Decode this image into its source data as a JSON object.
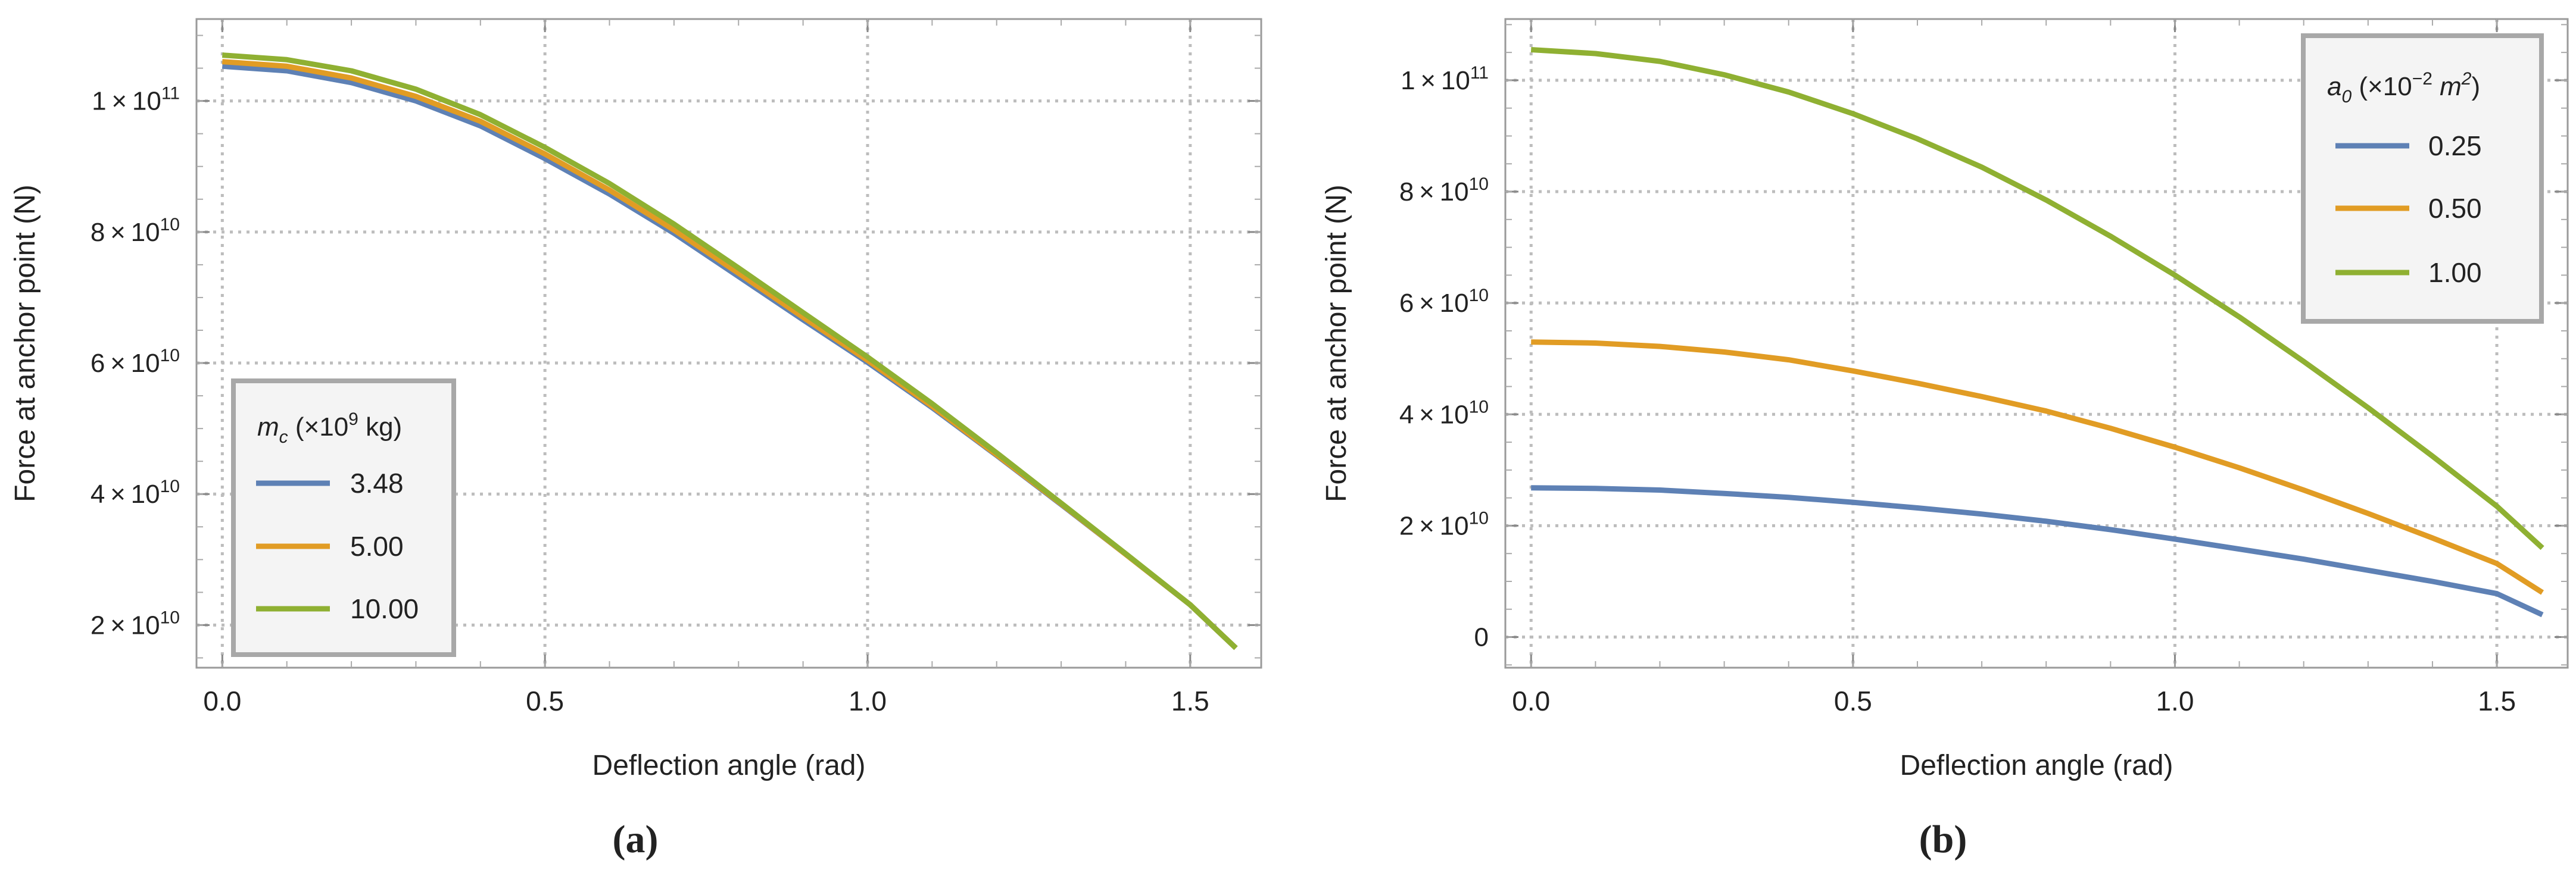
{
  "chart_data": [
    {
      "type": "line",
      "panel_label": "(a)",
      "xlabel": "Deflection angle (rad)",
      "ylabel": "Force at anchor point (N)",
      "xlim": [
        -0.04,
        1.61
      ],
      "ylim": [
        13500000000.0,
        112500000000.0
      ],
      "x_ticks": [
        {
          "value": 0.0,
          "label": "0.0"
        },
        {
          "value": 0.5,
          "label": "0.5"
        },
        {
          "value": 1.0,
          "label": "1.0"
        },
        {
          "value": 1.5,
          "label": "1.5"
        }
      ],
      "y_ticks": [
        {
          "value": 20000000000.0,
          "mant": "2",
          "exp": "10"
        },
        {
          "value": 40000000000.0,
          "mant": "4",
          "exp": "10"
        },
        {
          "value": 60000000000.0,
          "mant": "6",
          "exp": "10"
        },
        {
          "value": 80000000000.0,
          "mant": "8",
          "exp": "10"
        },
        {
          "value": 100000000000.0,
          "mant": "1",
          "exp": "11"
        }
      ],
      "grid": true,
      "legend": {
        "placement": "lower-left",
        "title_var": "m",
        "title_sub": "c",
        "title_pre": "(×10",
        "title_sup": "9",
        "title_post": " kg)"
      },
      "x": [
        0,
        0.1,
        0.2,
        0.3,
        0.4,
        0.5,
        0.6,
        0.7,
        0.8,
        0.9,
        1.0,
        1.1,
        1.2,
        1.3,
        1.4,
        1.5,
        1.5708
      ],
      "series": [
        {
          "name": "3.48",
          "color": "#5e81b5",
          "values": [
            105300000000.0,
            104600000000.0,
            102800000000.0,
            100000000000.0,
            96200000000.0,
            91200000000.0,
            85800000000.0,
            79800000000.0,
            73200000000.0,
            66600000000.0,
            60100000000.0,
            53200000000.0,
            45900000000.0,
            38400000000.0,
            30800000000.0,
            23100000000.0,
            16500000000.0
          ]
        },
        {
          "name": "5.00",
          "color": "#e19c24",
          "values": [
            106000000000.0,
            105300000000.0,
            103500000000.0,
            100700000000.0,
            96900000000.0,
            91900000000.0,
            86400000000.0,
            80300000000.0,
            73700000000.0,
            67000000000.0,
            60400000000.0,
            53400000000.0,
            46000000000.0,
            38500000000.0,
            30800000000.0,
            23100000000.0,
            16500000000.0
          ]
        },
        {
          "name": "10.00",
          "color": "#8fb032",
          "values": [
            107000000000.0,
            106300000000.0,
            104600000000.0,
            101800000000.0,
            97900000000.0,
            92900000000.0,
            87400000000.0,
            81200000000.0,
            74500000000.0,
            67700000000.0,
            60900000000.0,
            53800000000.0,
            46300000000.0,
            38600000000.0,
            30900000000.0,
            23100000000.0,
            16500000000.0
          ]
        }
      ]
    },
    {
      "type": "line",
      "panel_label": "(b)",
      "xlabel": "Deflection angle (rad)",
      "ylabel": "Force at anchor point (N)",
      "xlim": [
        -0.04,
        1.61
      ],
      "ylim": [
        -5500000000.0,
        111000000000.0
      ],
      "x_ticks": [
        {
          "value": 0.0,
          "label": "0.0"
        },
        {
          "value": 0.5,
          "label": "0.5"
        },
        {
          "value": 1.0,
          "label": "1.0"
        },
        {
          "value": 1.5,
          "label": "1.5"
        }
      ],
      "y_ticks": [
        {
          "value": 0,
          "plain": "0"
        },
        {
          "value": 20000000000.0,
          "mant": "2",
          "exp": "10"
        },
        {
          "value": 40000000000.0,
          "mant": "4",
          "exp": "10"
        },
        {
          "value": 60000000000.0,
          "mant": "6",
          "exp": "10"
        },
        {
          "value": 80000000000.0,
          "mant": "8",
          "exp": "10"
        },
        {
          "value": 100000000000.0,
          "mant": "1",
          "exp": "11"
        }
      ],
      "grid": true,
      "legend": {
        "placement": "top-right",
        "title_var": "a",
        "title_sub": "0",
        "title_pre": "(×10",
        "title_sup": "−2",
        "title_post": "m",
        "title_post_sup": "2",
        "title_close": ")"
      },
      "x": [
        0,
        0.1,
        0.2,
        0.3,
        0.4,
        0.5,
        0.6,
        0.7,
        0.8,
        0.9,
        1.0,
        1.1,
        1.2,
        1.3,
        1.4,
        1.5,
        1.5708
      ],
      "series": [
        {
          "name": "0.25",
          "color": "#5e81b5",
          "values": [
            26800000000.0,
            26700000000.0,
            26400000000.0,
            25800000000.0,
            25100000000.0,
            24200000000.0,
            23200000000.0,
            22100000000.0,
            20800000000.0,
            19300000000.0,
            17600000000.0,
            15800000000.0,
            14000000000.0,
            12000000000.0,
            10000000000.0,
            7800000000.0,
            4000000000.0
          ]
        },
        {
          "name": "0.50",
          "color": "#e19c24",
          "values": [
            53000000000.0,
            52800000000.0,
            52200000000.0,
            51200000000.0,
            49800000000.0,
            47800000000.0,
            45600000000.0,
            43200000000.0,
            40600000000.0,
            37500000000.0,
            34100000000.0,
            30400000000.0,
            26400000000.0,
            22200000000.0,
            17800000000.0,
            13200000000.0,
            8000000000.0
          ]
        },
        {
          "name": "1.00",
          "color": "#8fb032",
          "values": [
            105500000000.0,
            104800000000.0,
            103400000000.0,
            101000000000.0,
            97900000000.0,
            94000000000.0,
            89500000000.0,
            84400000000.0,
            78500000000.0,
            72000000000.0,
            65000000000.0,
            57500000000.0,
            49500000000.0,
            41200000000.0,
            32500000000.0,
            23500000000.0,
            16000000000.0
          ]
        }
      ]
    }
  ]
}
